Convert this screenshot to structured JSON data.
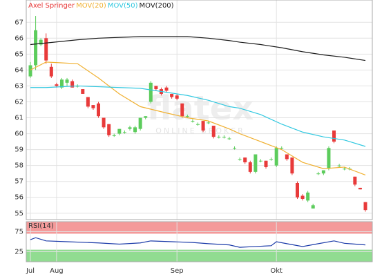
{
  "watermark": {
    "name": "flatex",
    "tagline": "ONLINE BROKER"
  },
  "chart_data": [
    {
      "type": "candlestick",
      "title": "Axel Springer",
      "categories": [
        "Jul",
        null,
        null,
        null,
        null,
        "Aug",
        null,
        null,
        null,
        null,
        null,
        null,
        null,
        null,
        null,
        null,
        null,
        null,
        null,
        null,
        null,
        null,
        null,
        null,
        null,
        null,
        null,
        null,
        "Sep",
        null,
        null,
        null,
        null,
        null,
        null,
        null,
        null,
        null,
        null,
        null,
        null,
        null,
        null,
        null,
        null,
        null,
        null,
        "Okt",
        null,
        null,
        null,
        null,
        null,
        null,
        null,
        null,
        null,
        null,
        null,
        null,
        null,
        null,
        null,
        null,
        null
      ],
      "open": [
        63.6,
        64.3,
        65.6,
        66.0,
        64.2,
        63.1,
        62.9,
        63.2,
        63.3,
        63.0,
        62.8,
        62.3,
        61.8,
        61.9,
        61.0,
        60.6,
        59.9,
        60.0,
        60.1,
        60.3,
        60.1,
        60.3,
        61.0,
        62.0,
        63.0,
        62.8,
        62.9,
        62.5,
        62.4,
        61.9,
        61.1,
        60.8,
        60.6,
        60.8,
        60.7,
        60.5,
        59.8,
        59.8,
        59.7,
        59.1,
        58.4,
        58.5,
        58.2,
        57.6,
        58.3,
        58.3,
        58.4,
        58.0,
        59.1,
        58.7,
        58.5,
        56.9,
        56.1,
        55.8,
        55.3,
        57.5,
        57.5,
        57.8,
        60.2,
        58.0,
        57.8,
        57.8,
        57.3,
        56.6,
        55.7
      ],
      "high": [
        64.5,
        67.4,
        66.0,
        66.3,
        64.4,
        63.2,
        63.5,
        63.5,
        63.4,
        63.1,
        62.8,
        62.3,
        61.8,
        62.0,
        61.0,
        60.6,
        60.0,
        60.3,
        60.2,
        60.5,
        60.5,
        61.0,
        61.1,
        63.3,
        63.0,
        62.9,
        63.0,
        62.5,
        62.5,
        61.9,
        61.2,
        60.9,
        60.7,
        60.8,
        60.8,
        60.5,
        59.9,
        59.9,
        59.8,
        59.2,
        58.5,
        58.5,
        58.3,
        58.7,
        58.4,
        58.3,
        58.5,
        59.2,
        59.2,
        58.7,
        58.5,
        57.0,
        56.2,
        56.4,
        55.6,
        57.6,
        57.7,
        59.2,
        60.2,
        58.1,
        57.9,
        57.9,
        57.3,
        56.6,
        55.7
      ],
      "low": [
        63.5,
        64.0,
        65.5,
        64.4,
        63.5,
        62.9,
        62.8,
        63.0,
        62.9,
        62.9,
        62.5,
        61.6,
        61.5,
        61.0,
        60.3,
        59.8,
        59.8,
        59.9,
        60.0,
        60.2,
        60.0,
        60.2,
        60.9,
        61.9,
        62.7,
        62.4,
        62.6,
        62.2,
        62.1,
        61.0,
        61.0,
        60.7,
        60.5,
        60.1,
        60.6,
        59.7,
        59.7,
        59.7,
        59.6,
        59.0,
        58.3,
        58.1,
        57.5,
        57.5,
        58.2,
        57.8,
        58.3,
        57.9,
        59.0,
        58.3,
        57.4,
        55.9,
        55.8,
        55.7,
        55.3,
        57.4,
        57.4,
        57.7,
        59.4,
        57.9,
        57.7,
        57.7,
        56.7,
        56.5,
        55.1
      ],
      "close": [
        64.3,
        66.5,
        65.9,
        64.6,
        63.6,
        63.0,
        63.4,
        63.4,
        62.9,
        63.0,
        62.5,
        61.7,
        61.6,
        61.1,
        60.4,
        59.9,
        59.9,
        60.3,
        60.1,
        60.4,
        60.4,
        61.0,
        61.1,
        63.2,
        62.8,
        62.5,
        62.7,
        62.3,
        62.2,
        61.1,
        61.1,
        60.8,
        60.6,
        60.2,
        60.7,
        59.8,
        59.8,
        59.8,
        59.7,
        59.1,
        58.4,
        58.2,
        57.6,
        58.7,
        58.3,
        57.9,
        58.4,
        59.1,
        59.1,
        58.4,
        57.5,
        56.0,
        55.9,
        56.3,
        55.5,
        57.5,
        57.7,
        59.1,
        59.5,
        58.0,
        57.8,
        57.8,
        56.8,
        56.5,
        55.2
      ],
      "up_color": "#5ccc5c",
      "down_color": "#e83a3a",
      "series": [
        {
          "name": "MOV(20)",
          "color": "#f0b030",
          "x": [
            0,
            3,
            9,
            13,
            17,
            21,
            26,
            30,
            34,
            38,
            40,
            44,
            48,
            52,
            56,
            60,
            64
          ],
          "values": [
            64.0,
            64.5,
            64.4,
            63.5,
            62.5,
            61.7,
            61.3,
            61.0,
            60.8,
            60.3,
            60.0,
            59.5,
            59.0,
            58.2,
            57.8,
            57.9,
            57.4
          ]
        },
        {
          "name": "MOV(50)",
          "color": "#30c8e0",
          "x": [
            0,
            3,
            9,
            13,
            17,
            21,
            26,
            30,
            34,
            38,
            40,
            44,
            48,
            52,
            56,
            60,
            64
          ],
          "values": [
            62.9,
            62.9,
            63.0,
            62.95,
            62.9,
            62.85,
            62.6,
            62.4,
            62.1,
            61.7,
            61.6,
            61.2,
            60.6,
            60.1,
            59.8,
            59.6,
            59.2
          ]
        },
        {
          "name": "MOV(200)",
          "color": "#1a1a1a",
          "x": [
            0,
            3,
            9,
            13,
            17,
            21,
            26,
            30,
            34,
            38,
            40,
            44,
            48,
            52,
            56,
            60,
            64
          ],
          "values": [
            65.6,
            65.7,
            65.9,
            66.0,
            66.05,
            66.1,
            66.1,
            66.1,
            66.0,
            65.85,
            65.75,
            65.6,
            65.4,
            65.15,
            64.95,
            64.8,
            64.6
          ]
        }
      ],
      "ylim": [
        54.6,
        68.4
      ],
      "yticks": [
        55,
        56,
        57,
        58,
        59,
        60,
        61,
        62,
        63,
        64,
        65,
        66,
        67
      ],
      "grid": true
    },
    {
      "type": "line",
      "title": "RSI(14)",
      "series": [
        {
          "name": "RSI(14)",
          "color": "#1a3aa8",
          "x": [
            0,
            1,
            3,
            7,
            13,
            17,
            21,
            23,
            27,
            31,
            34,
            38,
            40,
            43,
            46,
            47,
            49,
            52,
            55,
            58,
            60,
            64
          ],
          "values": [
            55,
            60,
            52,
            50,
            47,
            44,
            47,
            52,
            50,
            48,
            45,
            42,
            36,
            38,
            40,
            50,
            45,
            38,
            45,
            52,
            46,
            42
          ]
        }
      ],
      "bands": [
        {
          "from": 70,
          "to": 100,
          "color": "#f07878"
        },
        {
          "from": 0,
          "to": 30,
          "color": "#6cd06c"
        }
      ],
      "ylim": [
        0,
        100
      ],
      "yticks": [
        25,
        75
      ],
      "grid": true
    }
  ]
}
